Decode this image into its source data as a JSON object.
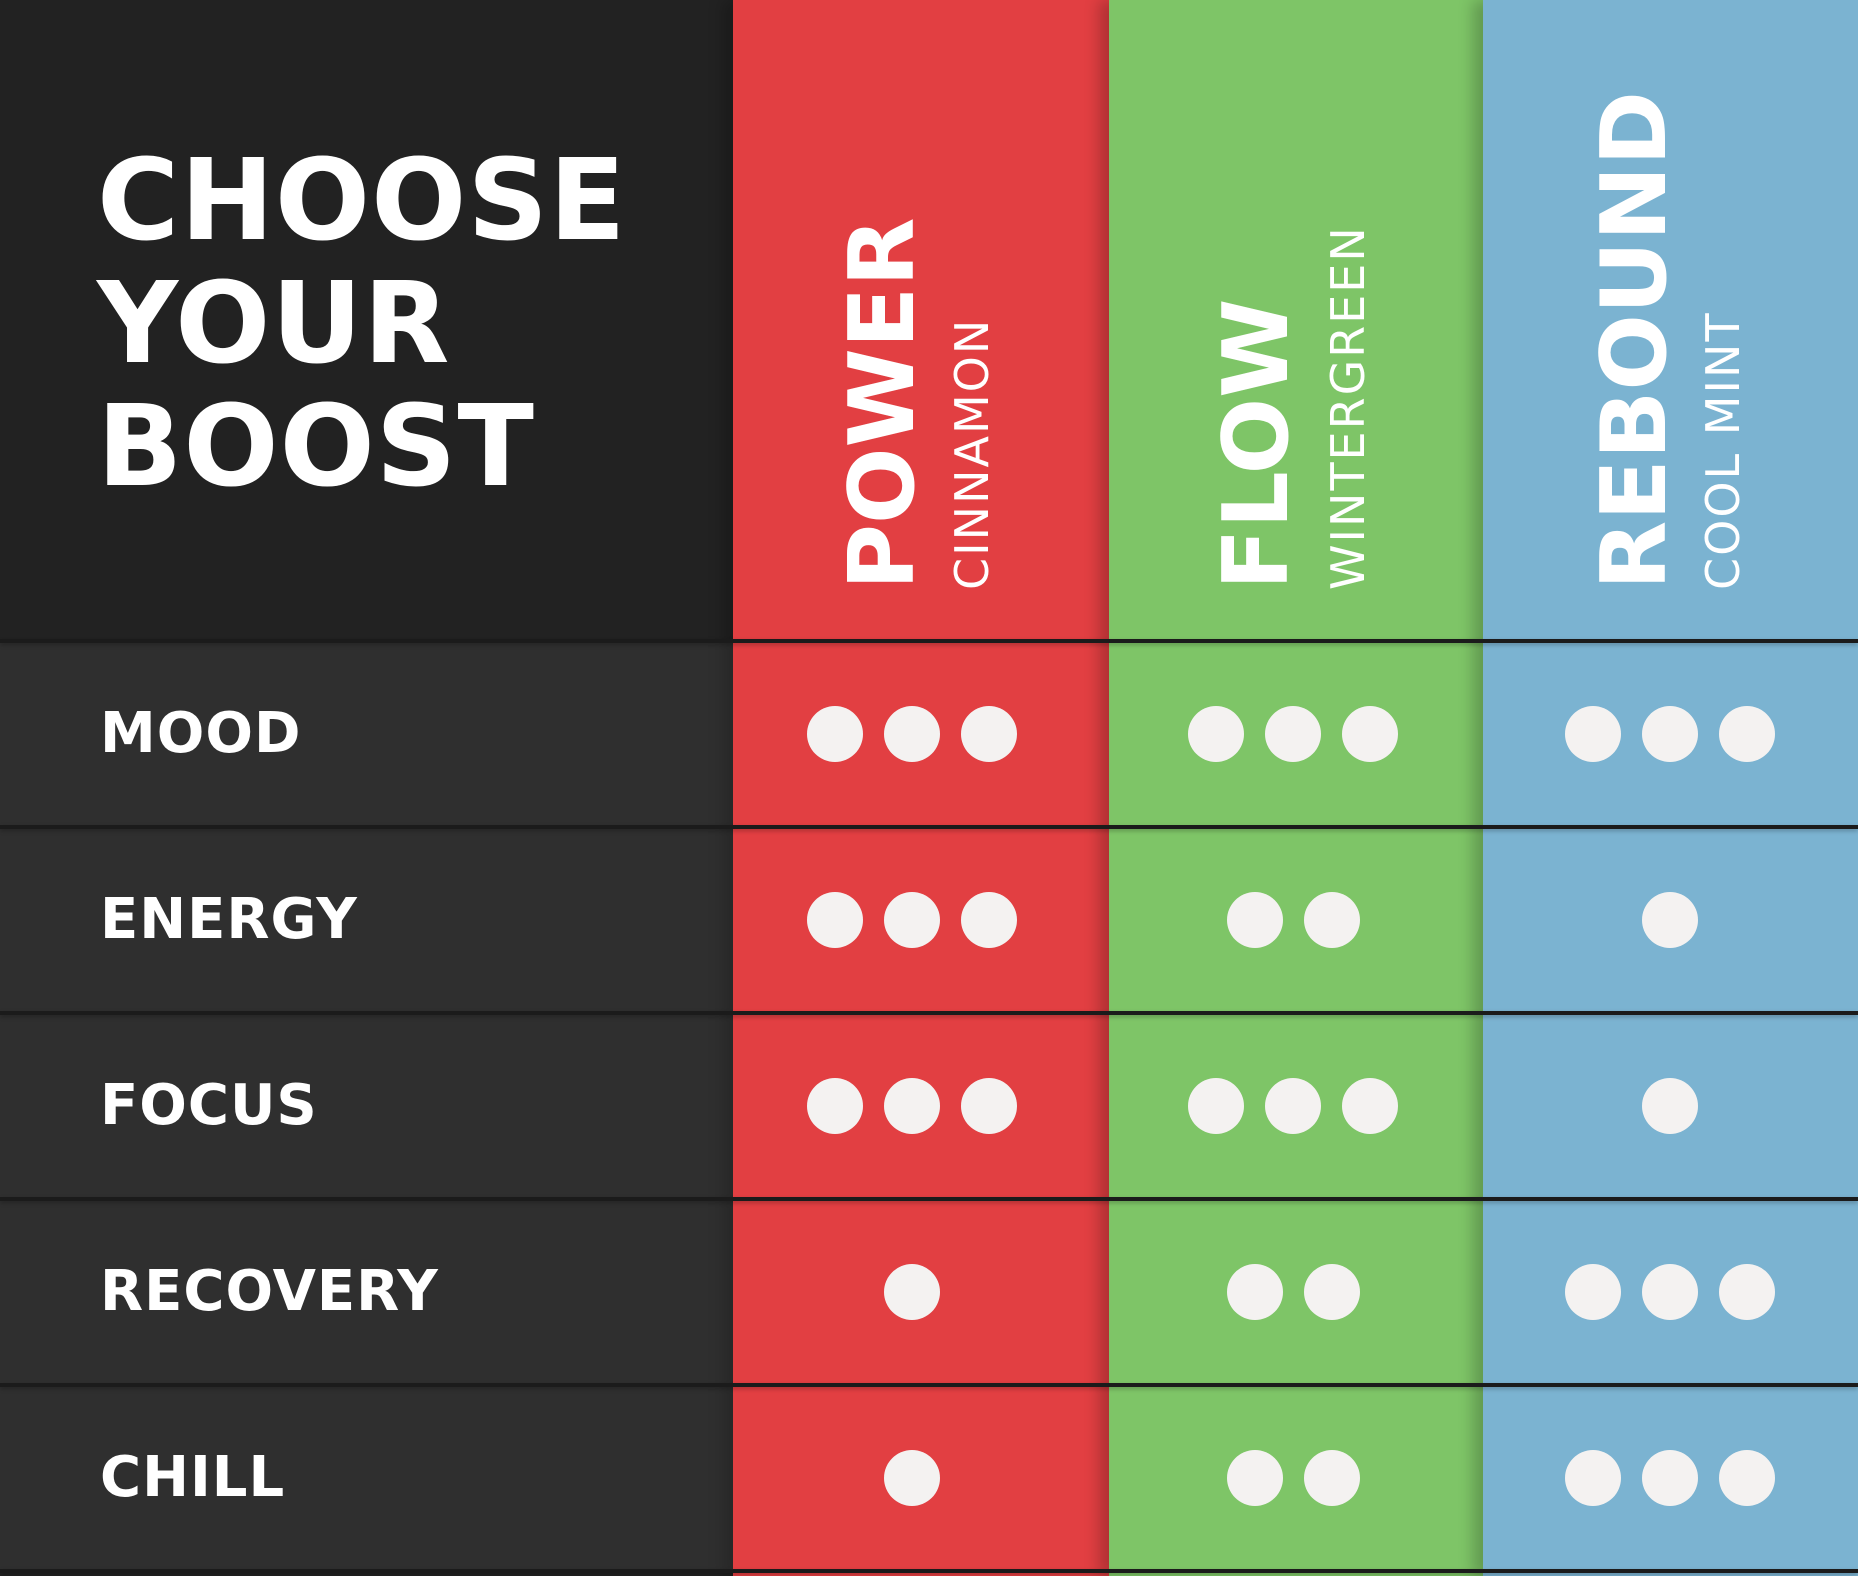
{
  "header": {
    "title_lines": [
      "CHOOSE",
      "YOUR",
      "BOOST"
    ]
  },
  "colors": {
    "background": "#222222",
    "dot": "#f4f2f1"
  },
  "products": [
    {
      "name": "POWER",
      "flavor": "CINNAMON",
      "color": "#e23f42"
    },
    {
      "name": "FLOW",
      "flavor": "WINTERGREEN",
      "color": "#7ec567"
    },
    {
      "name": "REBOUND",
      "flavor": "COOL MINT",
      "color": "#7bb3d1"
    }
  ],
  "rows": [
    {
      "label": "MOOD",
      "ratings": [
        3,
        3,
        3
      ]
    },
    {
      "label": "ENERGY",
      "ratings": [
        3,
        2,
        1
      ]
    },
    {
      "label": "FOCUS",
      "ratings": [
        3,
        3,
        1
      ]
    },
    {
      "label": "RECOVERY",
      "ratings": [
        1,
        2,
        3
      ]
    },
    {
      "label": "CHILL",
      "ratings": [
        1,
        2,
        3
      ]
    }
  ]
}
